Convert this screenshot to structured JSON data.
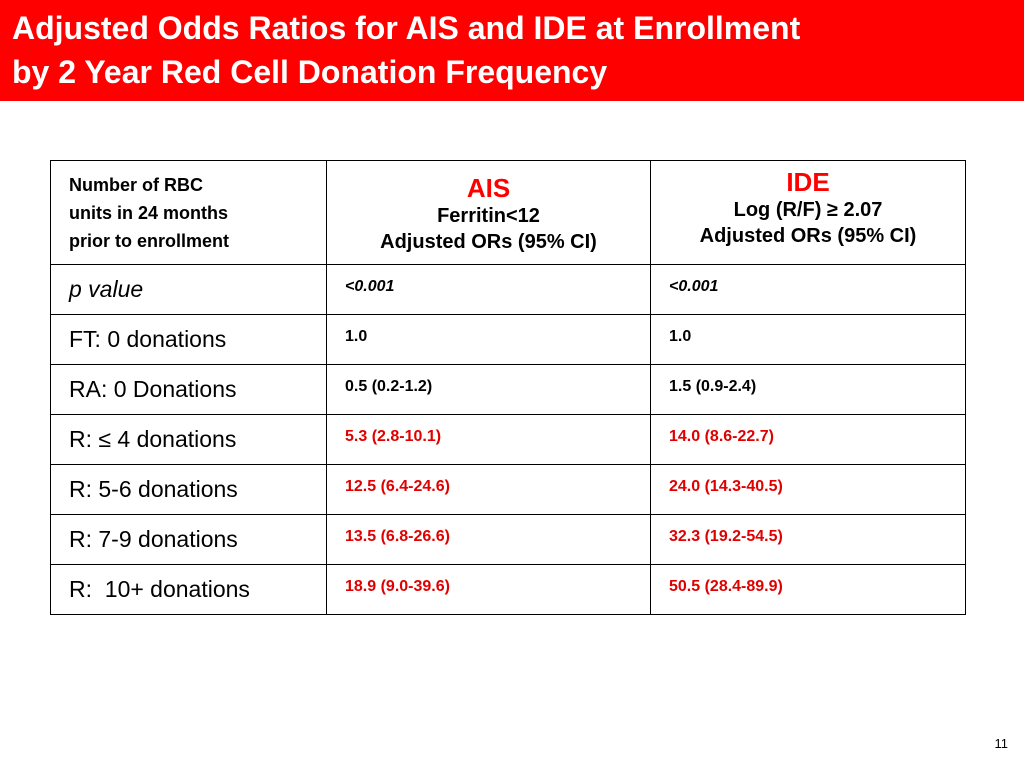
{
  "title": {
    "line1": "Adjusted Odds Ratios for AIS and IDE at Enrollment",
    "line2": "by 2 Year Red Cell Donation Frequency"
  },
  "table": {
    "header": {
      "first_line1": "Number of RBC",
      "first_line2": "units in 24 months",
      "first_line3": "prior to enrollment",
      "ais_name": "AIS",
      "ais_sub1": "Ferritin<12",
      "ais_sub2": "Adjusted ORs (95% CI)",
      "ide_name": "IDE",
      "ide_sub1": "Log (R/F) ≥ 2.07",
      "ide_sub2": "Adjusted ORs (95% CI)"
    },
    "rows": [
      {
        "label": "p value",
        "ais": "<0.001",
        "ide": "<0.001"
      },
      {
        "label": "FT: 0 donations",
        "ais": "1.0",
        "ide": "1.0"
      },
      {
        "label": "RA: 0 Donations",
        "ais": "0.5 (0.2-1.2)",
        "ide": "1.5 (0.9-2.4)"
      },
      {
        "label": "R: ≤ 4 donations",
        "ais": "5.3 (2.8-10.1)",
        "ide": "14.0 (8.6-22.7)"
      },
      {
        "label": "R: 5-6 donations",
        "ais": "12.5 (6.4-24.6)",
        "ide": "24.0 (14.3-40.5)"
      },
      {
        "label": "R: 7-9 donations",
        "ais": "13.5 (6.8-26.6)",
        "ide": "32.3 (19.2-54.5)"
      },
      {
        "label": "R:  10+ donations",
        "ais": "18.9 (9.0-39.6)",
        "ide": "50.5 (28.4-89.9)"
      }
    ]
  },
  "page_number": "11",
  "colors": {
    "title_bar": "#ff0000",
    "highlight_text": "#e00000"
  }
}
